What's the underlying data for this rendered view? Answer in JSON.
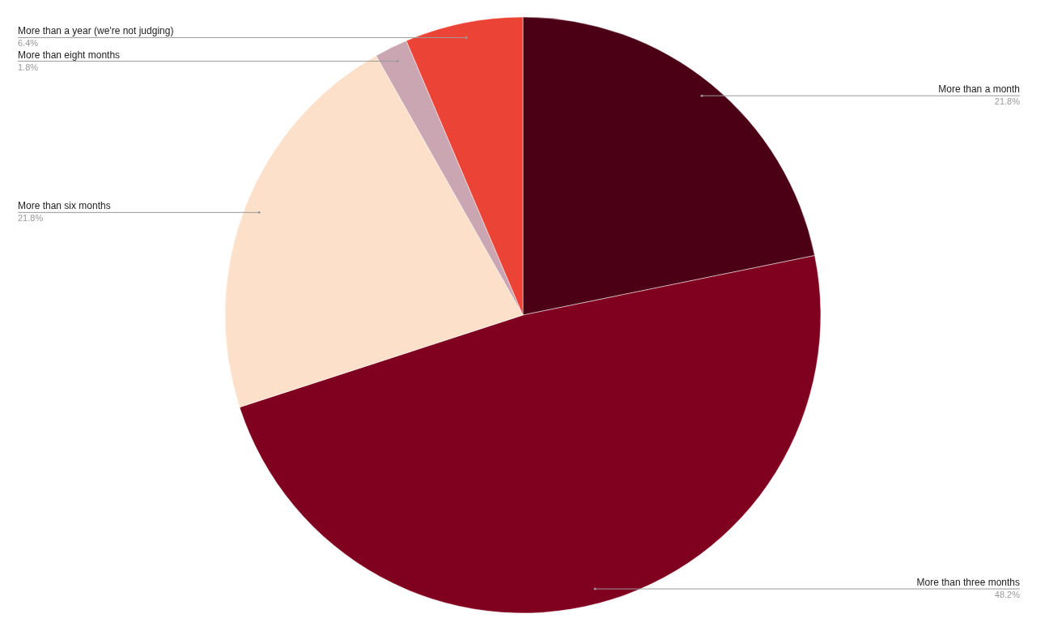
{
  "chart_data": {
    "type": "pie",
    "categories": [
      "More than a month",
      "More than three months",
      "More than six months",
      "More than eight months",
      "More than a year (we're not judging)"
    ],
    "values": [
      21.8,
      48.2,
      21.8,
      1.8,
      6.4
    ],
    "colors": [
      "#4c0016",
      "#800020",
      "#fde0c9",
      "#c9a6b2",
      "#eb4335"
    ],
    "value_labels": [
      "21.8%",
      "48.2%",
      "21.8%",
      "1.8%",
      "6.4%"
    ]
  }
}
